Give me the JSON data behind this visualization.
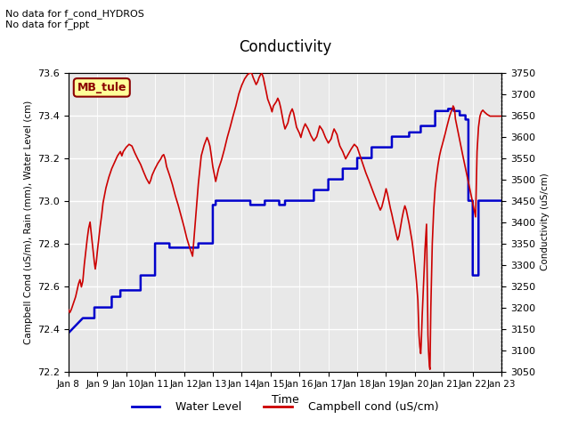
{
  "title": "Conductivity",
  "xlabel": "Time",
  "ylabel_left": "Campbell Cond (uS/m), Rain (mm), Water Level (cm)",
  "ylabel_right": "Conductivity (uS/cm)",
  "ylim_left": [
    72.2,
    73.6
  ],
  "ylim_right": [
    3050,
    3750
  ],
  "yticks_left": [
    72.2,
    72.4,
    72.6,
    72.8,
    73.0,
    73.2,
    73.4,
    73.6
  ],
  "yticks_right": [
    3050,
    3100,
    3150,
    3200,
    3250,
    3300,
    3350,
    3400,
    3450,
    3500,
    3550,
    3600,
    3650,
    3700,
    3750
  ],
  "xtick_labels": [
    "Jan 8",
    "Jan 9",
    "Jan 10",
    "Jan 11",
    "Jan 12",
    "Jan 13",
    "Jan 14",
    "Jan 15",
    "Jan 16",
    "Jan 17",
    "Jan 18",
    "Jan 19",
    "Jan 20",
    "Jan 21",
    "Jan 22",
    "Jan 23"
  ],
  "annotation_top": "No data for f_cond_HYDROS\nNo data for f_ppt",
  "legend_box_text": "MB_tule",
  "bg_color": "#e8e8e8",
  "water_level_color": "#0000cc",
  "campbell_cond_color": "#cc0000",
  "water_level_data": [
    [
      8.0,
      72.38
    ],
    [
      8.5,
      72.45
    ],
    [
      8.9,
      72.45
    ],
    [
      8.9,
      72.5
    ],
    [
      9.5,
      72.5
    ],
    [
      9.5,
      72.55
    ],
    [
      9.8,
      72.55
    ],
    [
      9.8,
      72.58
    ],
    [
      10.5,
      72.58
    ],
    [
      10.5,
      72.65
    ],
    [
      11.0,
      72.65
    ],
    [
      11.0,
      72.8
    ],
    [
      11.5,
      72.8
    ],
    [
      11.5,
      72.78
    ],
    [
      12.5,
      72.78
    ],
    [
      12.5,
      72.8
    ],
    [
      13.0,
      72.8
    ],
    [
      13.0,
      72.98
    ],
    [
      13.1,
      72.98
    ],
    [
      13.1,
      73.0
    ],
    [
      14.3,
      73.0
    ],
    [
      14.3,
      72.98
    ],
    [
      14.8,
      72.98
    ],
    [
      14.8,
      73.0
    ],
    [
      15.3,
      73.0
    ],
    [
      15.3,
      72.98
    ],
    [
      15.5,
      72.98
    ],
    [
      15.5,
      73.0
    ],
    [
      16.5,
      73.0
    ],
    [
      16.5,
      73.05
    ],
    [
      17.0,
      73.05
    ],
    [
      17.0,
      73.1
    ],
    [
      17.5,
      73.1
    ],
    [
      17.5,
      73.15
    ],
    [
      18.0,
      73.15
    ],
    [
      18.0,
      73.2
    ],
    [
      18.5,
      73.2
    ],
    [
      18.5,
      73.25
    ],
    [
      19.2,
      73.25
    ],
    [
      19.2,
      73.3
    ],
    [
      19.8,
      73.3
    ],
    [
      19.8,
      73.32
    ],
    [
      20.2,
      73.32
    ],
    [
      20.2,
      73.35
    ],
    [
      20.7,
      73.35
    ],
    [
      20.7,
      73.42
    ],
    [
      21.15,
      73.42
    ],
    [
      21.15,
      73.43
    ],
    [
      21.35,
      73.43
    ],
    [
      21.35,
      73.42
    ],
    [
      21.55,
      73.42
    ],
    [
      21.55,
      73.4
    ],
    [
      21.75,
      73.4
    ],
    [
      21.75,
      73.38
    ],
    [
      21.85,
      73.38
    ],
    [
      21.85,
      73.0
    ],
    [
      22.0,
      73.0
    ],
    [
      22.0,
      72.65
    ],
    [
      22.2,
      72.65
    ],
    [
      22.2,
      73.0
    ],
    [
      23.0,
      73.0
    ]
  ],
  "campbell_cond_data": [
    [
      8.0,
      3195
    ],
    [
      8.05,
      3188
    ],
    [
      8.1,
      3195
    ],
    [
      8.15,
      3205
    ],
    [
      8.2,
      3215
    ],
    [
      8.25,
      3225
    ],
    [
      8.3,
      3240
    ],
    [
      8.35,
      3255
    ],
    [
      8.4,
      3265
    ],
    [
      8.45,
      3248
    ],
    [
      8.5,
      3262
    ],
    [
      8.55,
      3300
    ],
    [
      8.6,
      3330
    ],
    [
      8.65,
      3360
    ],
    [
      8.7,
      3385
    ],
    [
      8.75,
      3400
    ],
    [
      8.78,
      3380
    ],
    [
      8.82,
      3355
    ],
    [
      8.86,
      3330
    ],
    [
      8.9,
      3305
    ],
    [
      8.93,
      3290
    ],
    [
      8.97,
      3308
    ],
    [
      9.0,
      3330
    ],
    [
      9.05,
      3360
    ],
    [
      9.1,
      3390
    ],
    [
      9.15,
      3415
    ],
    [
      9.2,
      3445
    ],
    [
      9.3,
      3480
    ],
    [
      9.4,
      3505
    ],
    [
      9.5,
      3525
    ],
    [
      9.6,
      3540
    ],
    [
      9.7,
      3555
    ],
    [
      9.8,
      3565
    ],
    [
      9.85,
      3555
    ],
    [
      9.9,
      3565
    ],
    [
      10.0,
      3575
    ],
    [
      10.1,
      3582
    ],
    [
      10.2,
      3578
    ],
    [
      10.3,
      3562
    ],
    [
      10.4,
      3548
    ],
    [
      10.5,
      3535
    ],
    [
      10.6,
      3518
    ],
    [
      10.7,
      3502
    ],
    [
      10.8,
      3490
    ],
    [
      10.85,
      3498
    ],
    [
      10.9,
      3510
    ],
    [
      11.0,
      3525
    ],
    [
      11.1,
      3538
    ],
    [
      11.2,
      3548
    ],
    [
      11.25,
      3555
    ],
    [
      11.3,
      3558
    ],
    [
      11.35,
      3548
    ],
    [
      11.4,
      3530
    ],
    [
      11.5,
      3510
    ],
    [
      11.6,
      3488
    ],
    [
      11.7,
      3462
    ],
    [
      11.8,
      3440
    ],
    [
      11.9,
      3415
    ],
    [
      12.0,
      3390
    ],
    [
      12.1,
      3362
    ],
    [
      12.2,
      3340
    ],
    [
      12.3,
      3320
    ],
    [
      12.5,
      3490
    ],
    [
      12.6,
      3555
    ],
    [
      12.7,
      3580
    ],
    [
      12.8,
      3598
    ],
    [
      12.85,
      3590
    ],
    [
      12.9,
      3578
    ],
    [
      12.95,
      3555
    ],
    [
      13.0,
      3530
    ],
    [
      13.05,
      3512
    ],
    [
      13.1,
      3495
    ],
    [
      13.15,
      3510
    ],
    [
      13.2,
      3525
    ],
    [
      13.3,
      3545
    ],
    [
      13.4,
      3570
    ],
    [
      13.5,
      3598
    ],
    [
      13.6,
      3622
    ],
    [
      13.7,
      3648
    ],
    [
      13.8,
      3672
    ],
    [
      13.9,
      3700
    ],
    [
      14.0,
      3720
    ],
    [
      14.1,
      3735
    ],
    [
      14.2,
      3745
    ],
    [
      14.3,
      3750
    ],
    [
      14.35,
      3748
    ],
    [
      14.4,
      3738
    ],
    [
      14.5,
      3722
    ],
    [
      14.55,
      3728
    ],
    [
      14.6,
      3738
    ],
    [
      14.65,
      3745
    ],
    [
      14.7,
      3748
    ],
    [
      14.75,
      3738
    ],
    [
      14.8,
      3722
    ],
    [
      14.85,
      3705
    ],
    [
      14.9,
      3688
    ],
    [
      15.0,
      3670
    ],
    [
      15.05,
      3658
    ],
    [
      15.1,
      3672
    ],
    [
      15.2,
      3682
    ],
    [
      15.25,
      3690
    ],
    [
      15.3,
      3682
    ],
    [
      15.35,
      3668
    ],
    [
      15.4,
      3650
    ],
    [
      15.45,
      3632
    ],
    [
      15.5,
      3618
    ],
    [
      15.6,
      3632
    ],
    [
      15.65,
      3648
    ],
    [
      15.7,
      3658
    ],
    [
      15.75,
      3665
    ],
    [
      15.8,
      3655
    ],
    [
      15.85,
      3638
    ],
    [
      15.9,
      3622
    ],
    [
      16.0,
      3608
    ],
    [
      16.05,
      3598
    ],
    [
      16.1,
      3612
    ],
    [
      16.15,
      3622
    ],
    [
      16.2,
      3630
    ],
    [
      16.3,
      3618
    ],
    [
      16.4,
      3602
    ],
    [
      16.5,
      3590
    ],
    [
      16.6,
      3600
    ],
    [
      16.65,
      3612
    ],
    [
      16.7,
      3625
    ],
    [
      16.8,
      3615
    ],
    [
      16.9,
      3598
    ],
    [
      17.0,
      3585
    ],
    [
      17.1,
      3595
    ],
    [
      17.15,
      3608
    ],
    [
      17.2,
      3618
    ],
    [
      17.3,
      3605
    ],
    [
      17.35,
      3590
    ],
    [
      17.4,
      3578
    ],
    [
      17.5,
      3565
    ],
    [
      17.6,
      3548
    ],
    [
      17.7,
      3560
    ],
    [
      17.8,
      3572
    ],
    [
      17.9,
      3582
    ],
    [
      18.0,
      3575
    ],
    [
      18.1,
      3555
    ],
    [
      18.2,
      3535
    ],
    [
      18.3,
      3515
    ],
    [
      18.4,
      3498
    ],
    [
      18.5,
      3480
    ],
    [
      18.6,
      3462
    ],
    [
      18.7,
      3445
    ],
    [
      18.8,
      3428
    ],
    [
      18.85,
      3435
    ],
    [
      18.9,
      3448
    ],
    [
      18.95,
      3462
    ],
    [
      19.0,
      3478
    ],
    [
      19.05,
      3465
    ],
    [
      19.1,
      3448
    ],
    [
      19.15,
      3432
    ],
    [
      19.2,
      3418
    ],
    [
      19.25,
      3402
    ],
    [
      19.3,
      3388
    ],
    [
      19.35,
      3372
    ],
    [
      19.4,
      3358
    ],
    [
      19.45,
      3368
    ],
    [
      19.5,
      3388
    ],
    [
      19.55,
      3408
    ],
    [
      19.6,
      3425
    ],
    [
      19.65,
      3438
    ],
    [
      19.7,
      3428
    ],
    [
      19.75,
      3412
    ],
    [
      19.8,
      3395
    ],
    [
      19.85,
      3375
    ],
    [
      19.9,
      3355
    ],
    [
      19.95,
      3328
    ],
    [
      20.0,
      3298
    ],
    [
      20.05,
      3262
    ],
    [
      20.1,
      3218
    ],
    [
      20.12,
      3175
    ],
    [
      20.14,
      3135
    ],
    [
      20.15,
      3125
    ],
    [
      20.17,
      3108
    ],
    [
      20.19,
      3098
    ],
    [
      20.2,
      3092
    ],
    [
      20.22,
      3120
    ],
    [
      20.25,
      3180
    ],
    [
      20.3,
      3260
    ],
    [
      20.35,
      3338
    ],
    [
      20.4,
      3395
    ],
    [
      20.45,
      3135
    ],
    [
      20.47,
      3098
    ],
    [
      20.5,
      3062
    ],
    [
      20.52,
      3055
    ],
    [
      20.55,
      3200
    ],
    [
      20.6,
      3350
    ],
    [
      20.65,
      3430
    ],
    [
      20.7,
      3480
    ],
    [
      20.75,
      3510
    ],
    [
      20.8,
      3535
    ],
    [
      20.85,
      3555
    ],
    [
      20.9,
      3570
    ],
    [
      20.95,
      3582
    ],
    [
      21.0,
      3595
    ],
    [
      21.05,
      3608
    ],
    [
      21.1,
      3622
    ],
    [
      21.15,
      3635
    ],
    [
      21.2,
      3648
    ],
    [
      21.25,
      3658
    ],
    [
      21.3,
      3665
    ],
    [
      21.32,
      3672
    ],
    [
      21.35,
      3668
    ],
    [
      21.38,
      3658
    ],
    [
      21.4,
      3642
    ],
    [
      21.45,
      3625
    ],
    [
      21.5,
      3608
    ],
    [
      21.55,
      3592
    ],
    [
      21.6,
      3575
    ],
    [
      21.65,
      3558
    ],
    [
      21.7,
      3542
    ],
    [
      21.75,
      3525
    ],
    [
      21.8,
      3510
    ],
    [
      21.85,
      3495
    ],
    [
      21.9,
      3478
    ],
    [
      21.95,
      3462
    ],
    [
      22.0,
      3445
    ],
    [
      22.05,
      3428
    ],
    [
      22.1,
      3412
    ],
    [
      22.15,
      3565
    ],
    [
      22.2,
      3622
    ],
    [
      22.25,
      3648
    ],
    [
      22.3,
      3658
    ],
    [
      22.35,
      3662
    ],
    [
      22.4,
      3658
    ],
    [
      22.5,
      3652
    ],
    [
      22.6,
      3648
    ],
    [
      22.7,
      3648
    ],
    [
      22.8,
      3648
    ],
    [
      22.9,
      3648
    ],
    [
      23.0,
      3648
    ]
  ]
}
